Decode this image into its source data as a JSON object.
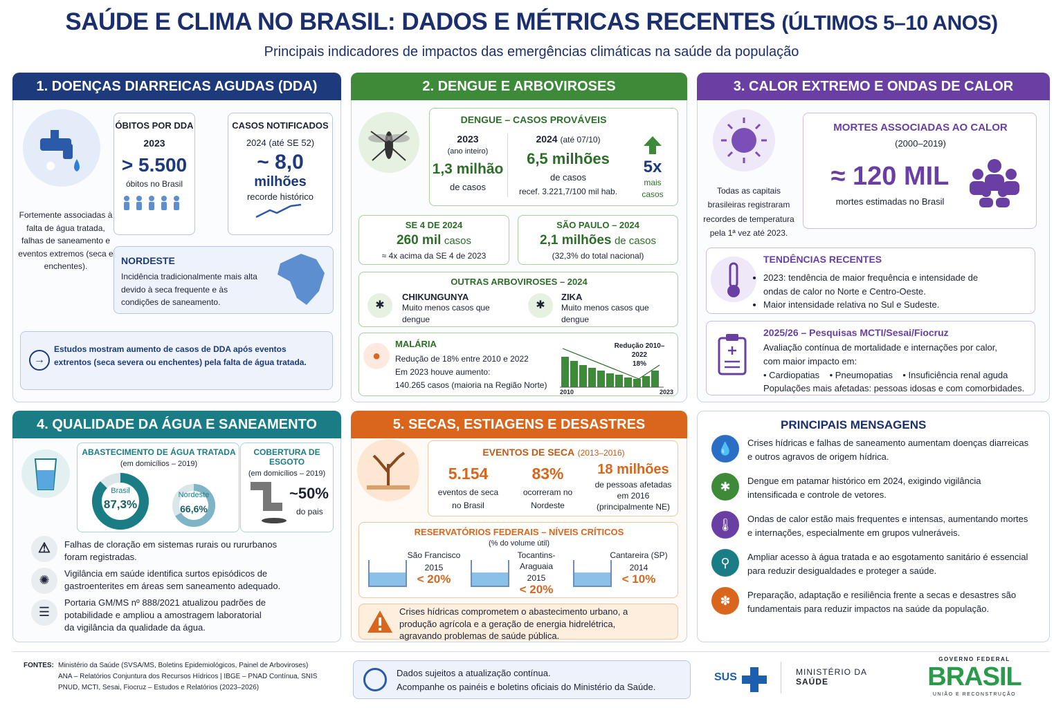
{
  "header": {
    "title": "SAÚDE E CLIMA NO BRASIL: DADOS E MÉTRICAS RECENTES",
    "title_suffix": "(ÚLTIMOS 5–10 ANOS)",
    "subtitle": "Principais indicadores de impactos das emergências climáticas na saúde da população"
  },
  "s1": {
    "title": "1. DOENÇAS DIARREICAS AGUDAS (DDA)",
    "intro": "Fortemente associadas à falta de água tratada, falhas de saneamento e eventos extremos (seca e enchentes).",
    "card1": {
      "title": "ÓBITOS POR DDA",
      "year": "2023",
      "value": "> 5.500",
      "note": "óbitos no Brasil"
    },
    "card2": {
      "title": "CASOS NOTIFICADOS",
      "period": "2024 (até SE 52)",
      "value": "~ 8,0",
      "unit": "milhões",
      "note": "recorde histórico"
    },
    "region": {
      "title": "NORDESTE",
      "text": "Incidência tradicionalmente mais alta devido à seca frequente e às condições de saneamento."
    },
    "note": "Estudos mostram aumento de casos de DDA após eventos extrentos (seca severa ou enchentes) pela falta de água tratada."
  },
  "s2": {
    "title": "2. DENGUE E ARBOVIROSES",
    "dengue": {
      "title": "DENGUE – CASOS PROVÁVEIS",
      "y1": "2023",
      "y1_note": "(ano inteiro)",
      "y1_value": "1,3 milhão",
      "y1_unit": "de casos",
      "y2": "2024",
      "y2_note": "(até 07/10)",
      "y2_value": "6,5 milhões",
      "y2_unit": "de casos",
      "y2_rate": "recef. 3.221,7/100 mil hab.",
      "growth": "5x",
      "growth_note": "mais casos"
    },
    "se4": {
      "title": "SE 4 DE 2024",
      "value": "260 mil",
      "unit": "casos",
      "note": "≈ 4x acima da SE 4 de 2023"
    },
    "sp": {
      "title": "SÃO PAULO – 2024",
      "value": "2,1 milhões",
      "unit": "de casos",
      "note": "(32,3% do total nacional)"
    },
    "other": {
      "title": "OUTRAS ARBOVIROSES – 2024",
      "items": [
        {
          "name": "CHIKUNGUNYA",
          "text": "Muito menos casos que dengue"
        },
        {
          "name": "ZIKA",
          "text": "Muito menos casos que dengue"
        }
      ]
    },
    "malaria": {
      "title": "MALÁRIA",
      "lines": [
        "Redução de 18% entre 2010 e 2022",
        "Em 2023 houve aumento:",
        "140.265 casos (maioria na Região Norte)"
      ],
      "chart_title": "Redução 2010–2022",
      "chart_value": "18%",
      "x_start": "2010",
      "x_end": "2023"
    }
  },
  "s3": {
    "title": "3. CALOR EXTREMO E ONDAS DE CALOR",
    "intro": "Todas as capitais brasileiras registraram recordes de temperatura pela 1ª vez até 2023.",
    "deaths": {
      "title": "MORTES ASSOCIADAS AO CALOR",
      "period": "(2000–2019)",
      "value": "≈ 120 MIL",
      "note": "mortes estimadas no Brasil"
    },
    "trends": {
      "title": "TENDÊNCIAS RECENTES",
      "items": [
        "2023: tendência de maior frequência e intensidade de ondas de calor no Norte e Centro-Oeste.",
        "Maior intensidade relativa no Sul e Sudeste."
      ]
    },
    "research": {
      "title": "2025/26 – Pesquisas MCTI/Sesai/Fiocruz",
      "text": "Avaliação contínua de mortalidade e internações por calor, com maior impacto em:",
      "items": [
        "Cardiopatias",
        "Pneumopatias",
        "Insuficiência renal aguda"
      ],
      "footer": "Populações mais afetadas: pessoas idosas e com comorbidades."
    }
  },
  "s4": {
    "title": "4. QUALIDADE DA ÁGUA E SANEAMENTO",
    "water": {
      "title": "ABASTECIMENTO DE ÁGUA TRATADA",
      "period": "(em domicílios – 2019)",
      "rings": [
        {
          "label": "Brasil",
          "value": 87.3,
          "value_label": "87,3%"
        },
        {
          "label": "Nordeste",
          "value": 66.6,
          "value_label": "66,6%"
        }
      ]
    },
    "sewer": {
      "title": "COBERTURA DE ESGOTO",
      "period": "(em domicílios – 2019)",
      "value": "~50%",
      "note": "do pais"
    },
    "items": [
      "Falhas de cloração em sistemas rurais ou rururbanos foram registradas.",
      "Vigilância em saúde identifica surtos episódicos de gastroenterites em áreas sem saneamento adequado.",
      "Portaria GM/MS nº 888/2021 atualizou padrões de potabilidade e ampliou a amostragem laboratorial da vigilância da qualidade da água."
    ]
  },
  "s5": {
    "title": "5. SECAS, ESTIAGENS E DESASTRES",
    "drought": {
      "title": "EVENTOS DE SECA",
      "period": "(2013–2016)",
      "stats": [
        {
          "value": "5.154",
          "note": "eventos de seca no Brasil"
        },
        {
          "value": "83%",
          "note": "ocorreram no Nordeste"
        },
        {
          "value": "18 milhões",
          "note": "de pessoas afetadas em 2016 (principalmente NE)"
        }
      ]
    },
    "reservoirs": {
      "title": "RESERVATÓRIOS FEDERAIS – NÍVEIS CRÍTICOS",
      "subtitle": "(% do volume útil)",
      "items": [
        {
          "name": "São Francisco",
          "year": "2015",
          "value": "< 20%"
        },
        {
          "name": "Tocantins-Araguaia",
          "year": "2015",
          "value": "< 20%"
        },
        {
          "name": "Cantareira (SP)",
          "year": "2014",
          "value": "< 10%"
        }
      ]
    },
    "warning": "Crises hídricas comprometem o abastecimento urbano, a produção agrícola e a geração de energia hidrelétrica, agravando problemas de saúde pública."
  },
  "messages": {
    "title": "PRINCIPAIS MENSAGENS",
    "items": [
      "Crises hídricas e falhas de saneamento aumentam doenças diarreicas e outros agravos de origem hídrica.",
      "Dengue em patamar histórico em 2024, exigindo vigilância intensificada e controle de vetores.",
      "Ondas de calor estão mais frequentes e intensas, aumentando mortes e internações, especialmente em grupos vulneráveis.",
      "Ampliar acesso à água tratada e ao esgotamento sanitário é essencial para reduzir desigualdades e proteger a saúde.",
      "Preparação, adaptação e resiliência frente a secas e desastres são fundamentais para reduzir impactos na saúde da população."
    ]
  },
  "footer": {
    "sources_label": "FONTES:",
    "sources": [
      "Ministério da Saúde (SVSA/MS, Boletins Epidemiológicos, Painel de Arboviroses)",
      "ANA – Relatórios Conjuntura dos Recursos Hídricos | IBGE – PNAD Contínua, SNIS",
      "PNUD, MCTI, Sesai, Fiocruz – Estudos e Relatórios (2023–2026)"
    ],
    "update": [
      "Dados sujeitos a atualização contínua.",
      "Acompanhe os painéis e boletins oficiais do Ministério da Saúde."
    ],
    "sus": "SUS",
    "ministry": [
      "MINISTÉRIO DA",
      "SAÚDE"
    ],
    "gov": "GOVERNO FEDERAL",
    "brasil": "BRASIL",
    "motto": "UNIÃO E RECONSTRUÇÃO"
  }
}
